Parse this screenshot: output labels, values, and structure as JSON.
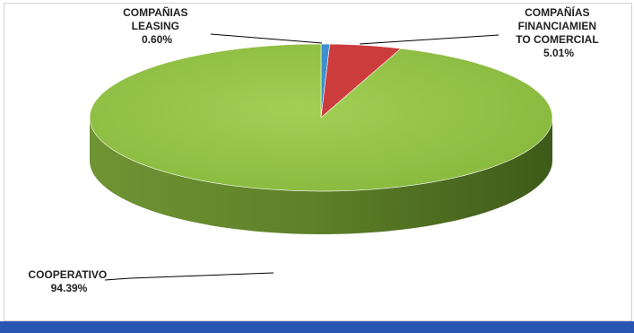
{
  "chart_data": {
    "type": "pie",
    "style": "3d",
    "slices": [
      {
        "label_lines": [
          "COOPERATIVO"
        ],
        "percent_text": "94.39%",
        "value": 94.39,
        "color": "#8fc241"
      },
      {
        "label_lines": [
          "COMPAÑÍAS",
          "FINANCIAMIEN",
          "TO COMERCIAL"
        ],
        "percent_text": "5.01%",
        "value": 5.01,
        "color": "#cc3c3c"
      },
      {
        "label_lines": [
          "COMPAÑIAS",
          "LEASING"
        ],
        "percent_text": "0.60%",
        "value": 0.6,
        "color": "#3d8fcf"
      }
    ]
  },
  "colors": {
    "bottom_bar": "#2855b3",
    "pie_side": "#5e7f2c"
  }
}
